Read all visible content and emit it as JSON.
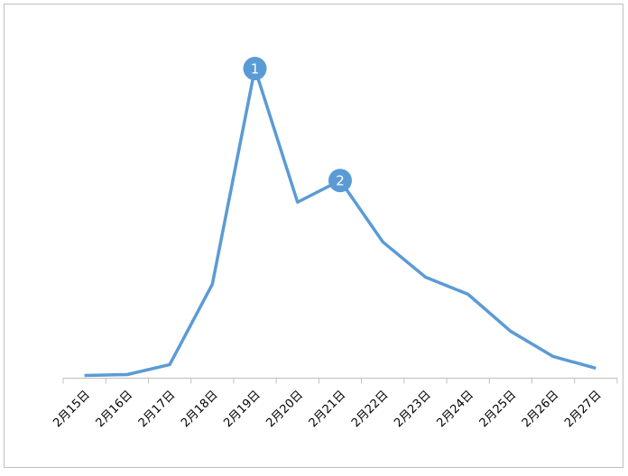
{
  "chart_data": {
    "type": "line",
    "categories": [
      "2月15日",
      "2月16日",
      "2月17日",
      "2月18日",
      "2月19日",
      "2月20日",
      "2月21日",
      "2月22日",
      "2月23日",
      "2月24日",
      "2月25日",
      "2月26日",
      "2月27日"
    ],
    "values": [
      3,
      4,
      15,
      104,
      343,
      195,
      219,
      151,
      112,
      93,
      52,
      24,
      11
    ],
    "color": "#5b9bd5",
    "ylim": [
      0,
      389
    ],
    "annotations": [
      {
        "text": "1",
        "category": "2月19日"
      },
      {
        "text": "2",
        "category": "2月21日"
      }
    ]
  }
}
